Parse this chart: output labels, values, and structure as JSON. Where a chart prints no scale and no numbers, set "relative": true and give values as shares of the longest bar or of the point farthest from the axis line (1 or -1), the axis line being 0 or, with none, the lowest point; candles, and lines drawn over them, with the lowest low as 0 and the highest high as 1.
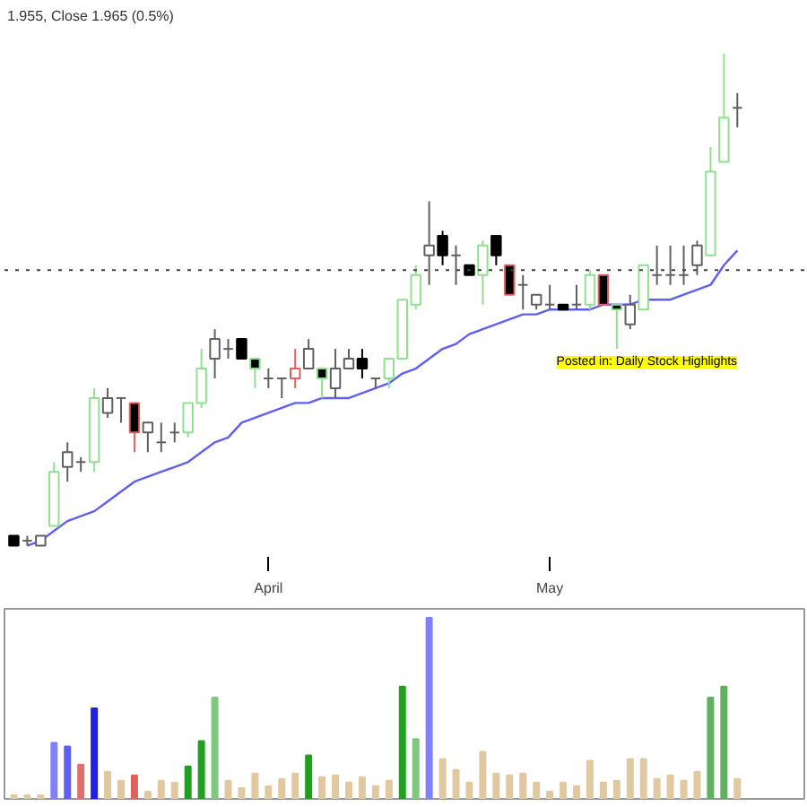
{
  "chart_data": [
    {
      "type": "candlestick",
      "relative": true,
      "annotations": [
        "1.955, Close 1.965 (0.5%)",
        "Posted in: Daily Stock Highlights"
      ],
      "categories": [
        null,
        null,
        null,
        null,
        null,
        null,
        null,
        null,
        null,
        null,
        null,
        null,
        null,
        null,
        null,
        null,
        null,
        null,
        null,
        "April",
        null,
        null,
        null,
        null,
        null,
        null,
        null,
        null,
        null,
        null,
        null,
        null,
        null,
        null,
        null,
        null,
        null,
        null,
        null,
        null,
        "May",
        null,
        null,
        null,
        null,
        null,
        null,
        null,
        null,
        null,
        null,
        null,
        null,
        null,
        null
      ],
      "ohlc": [
        [
          0.02,
          0.02,
          0,
          0
        ],
        [
          0.01,
          0.02,
          0,
          0.01
        ],
        [
          0,
          0.02,
          0,
          0.02
        ],
        [
          0.04,
          0.17,
          0.04,
          0.15
        ],
        [
          0.16,
          0.21,
          0.13,
          0.19
        ],
        [
          0.17,
          0.18,
          0.15,
          0.17
        ],
        [
          0.17,
          0.32,
          0.15,
          0.3
        ],
        [
          0.27,
          0.32,
          0.26,
          0.3
        ],
        [
          0.3,
          0.3,
          0.25,
          0.3
        ],
        [
          0.29,
          0.29,
          0.19,
          0.23
        ],
        [
          0.23,
          0.25,
          0.19,
          0.25
        ],
        [
          0.21,
          0.25,
          0.19,
          0.21
        ],
        [
          0.23,
          0.25,
          0.21,
          0.23
        ],
        [
          0.23,
          0.29,
          0.22,
          0.29
        ],
        [
          0.29,
          0.4,
          0.28,
          0.36
        ],
        [
          0.38,
          0.44,
          0.34,
          0.42
        ],
        [
          0.4,
          0.42,
          0.38,
          0.4
        ],
        [
          0.42,
          0.42,
          0.38,
          0.38
        ],
        [
          0.38,
          0.38,
          0.32,
          0.36
        ],
        [
          0.34,
          0.36,
          0.32,
          0.34
        ],
        [
          0.34,
          0.34,
          0.3,
          0.34
        ],
        [
          0.34,
          0.4,
          0.32,
          0.36
        ],
        [
          0.36,
          0.42,
          0.36,
          0.4
        ],
        [
          0.36,
          0.36,
          0.3,
          0.34
        ],
        [
          0.32,
          0.4,
          0.3,
          0.36
        ],
        [
          0.36,
          0.4,
          0.36,
          0.38
        ],
        [
          0.38,
          0.4,
          0.34,
          0.36
        ],
        [
          0.34,
          0.34,
          0.32,
          0.34
        ],
        [
          0.34,
          0.38,
          0.32,
          0.38
        ],
        [
          0.38,
          0.5,
          0.38,
          0.5
        ],
        [
          0.49,
          0.57,
          0.48,
          0.55
        ],
        [
          0.59,
          0.7,
          0.53,
          0.61
        ],
        [
          0.63,
          0.64,
          0.57,
          0.59
        ],
        [
          0.59,
          0.61,
          0.53,
          0.59
        ],
        [
          0.57,
          0.57,
          0.55,
          0.55
        ],
        [
          0.55,
          0.62,
          0.49,
          0.61
        ],
        [
          0.63,
          0.63,
          0.57,
          0.59
        ],
        [
          0.57,
          0.57,
          0.51,
          0.51
        ],
        [
          0.53,
          0.55,
          0.48,
          0.53
        ],
        [
          0.49,
          0.51,
          0.48,
          0.51
        ],
        [
          0.49,
          0.53,
          0.48,
          0.49
        ],
        [
          0.49,
          0.49,
          0.48,
          0.48
        ],
        [
          0.49,
          0.53,
          0.48,
          0.49
        ],
        [
          0.49,
          0.56,
          0.48,
          0.55
        ],
        [
          0.55,
          0.55,
          0.49,
          0.49
        ],
        [
          0.49,
          0.49,
          0.4,
          0.48
        ],
        [
          0.45,
          0.51,
          0.44,
          0.49
        ],
        [
          0.48,
          0.57,
          0.48,
          0.57
        ],
        [
          0.55,
          0.61,
          0.53,
          0.55
        ],
        [
          0.55,
          0.61,
          0.53,
          0.55
        ],
        [
          0.55,
          0.61,
          0.53,
          0.55
        ],
        [
          0.57,
          0.62,
          0.55,
          0.61
        ],
        [
          0.59,
          0.81,
          0.59,
          0.76
        ],
        [
          0.78,
          1,
          0.78,
          0.87
        ],
        [
          0.89,
          0.92,
          0.85,
          0.89
        ]
      ],
      "colors": [
        "#000000",
        "#606060",
        "#606060",
        "#90e090",
        "#606060",
        "#606060",
        "#90e090",
        "#606060",
        "#606060",
        "#e06060",
        "#606060",
        "#606060",
        "#606060",
        "#90e090",
        "#90e090",
        "#606060",
        "#606060",
        "#000000",
        "#90e090",
        "#606060",
        "#606060",
        "#e06060",
        "#606060",
        "#90e090",
        "#606060",
        "#606060",
        "#000000",
        "#606060",
        "#90e090",
        "#90e090",
        "#90e090",
        "#606060",
        "#000000",
        "#606060",
        "#000000",
        "#90e090",
        "#000000",
        "#e06060",
        "#606060",
        "#606060",
        "#606060",
        "#000000",
        "#606060",
        "#90e090",
        "#e06060",
        "#90e090",
        "#606060",
        "#90e090",
        "#606060",
        "#606060",
        "#606060",
        "#606060",
        "#90e090",
        "#90e090",
        "#606060"
      ],
      "series": [
        {
          "type": "line",
          "color": "#6060f0",
          "values": [
            null,
            0,
            0.01,
            0.03,
            0.05,
            0.06,
            0.07,
            0.09,
            0.11,
            0.13,
            0.14,
            0.15,
            0.16,
            0.17,
            0.19,
            0.21,
            0.22,
            0.25,
            0.26,
            0.27,
            0.28,
            0.29,
            0.29,
            0.3,
            0.3,
            0.3,
            0.31,
            0.32,
            0.33,
            0.35,
            0.36,
            0.38,
            0.4,
            0.41,
            0.43,
            0.44,
            0.45,
            0.46,
            0.47,
            0.47,
            0.48,
            0.48,
            0.48,
            0.48,
            0.49,
            0.49,
            0.49,
            0.5,
            0.5,
            0.5,
            0.51,
            0.52,
            0.53,
            0.57,
            0.6
          ]
        }
      ],
      "ref_lines": [
        {
          "axis": "y",
          "value": 0.56,
          "color": "#404040",
          "line_style": "dotted"
        }
      ]
    },
    {
      "type": "bar",
      "relative": true,
      "tick_labels": false,
      "categories": [
        null,
        null,
        null,
        null,
        null,
        null,
        null,
        null,
        null,
        null,
        null,
        null,
        null,
        null,
        null,
        null,
        null,
        null,
        null,
        null,
        null,
        null,
        null,
        null,
        null,
        null,
        null,
        null,
        null,
        null,
        null,
        null,
        null,
        null,
        null,
        null,
        null,
        null,
        null,
        null,
        null,
        null,
        null,
        null,
        null,
        null,
        null,
        null,
        null,
        null,
        null,
        null,
        null,
        null,
        null
      ],
      "values": [
        0.02,
        0.02,
        0.02,
        0.31,
        0.29,
        0.19,
        0.5,
        0.15,
        0.1,
        0.13,
        0.04,
        0.1,
        0.09,
        0.18,
        0.32,
        0.56,
        0.1,
        0.06,
        0.14,
        0.07,
        0.11,
        0.14,
        0.24,
        0.12,
        0.13,
        0.09,
        0.12,
        0.07,
        0.1,
        0.62,
        0.33,
        1,
        0.22,
        0.16,
        0.09,
        0.26,
        0.14,
        0.13,
        0.14,
        0.09,
        0.04,
        0.09,
        0.07,
        0.21,
        0.09,
        0.1,
        0.22,
        0.22,
        0.11,
        0.13,
        0.1,
        0.15,
        0.56,
        0.62,
        0.11
      ],
      "colors": [
        "#e0c8a0",
        "#e0c8a0",
        "#e0c8a0",
        "#8080ff",
        "#6060f0",
        "#e07070",
        "#2020e0",
        "#e0c8a0",
        "#e0c8a0",
        "#e06060",
        "#e0c8a0",
        "#e0c8a0",
        "#e0c8a0",
        "#20a020",
        "#20a020",
        "#80c880",
        "#e0c8a0",
        "#e0c8a0",
        "#e0c8a0",
        "#e0c8a0",
        "#e0c8a0",
        "#e0c8a0",
        "#20a020",
        "#e0c8a0",
        "#e0c8a0",
        "#e0c8a0",
        "#e0c8a0",
        "#e0c8a0",
        "#e0c8a0",
        "#20a020",
        "#80c880",
        "#8080ff",
        "#e0c8a0",
        "#e0c8a0",
        "#e0c8a0",
        "#e0c8a0",
        "#e0c8a0",
        "#e0c8a0",
        "#e0c8a0",
        "#e0c8a0",
        "#e0c8a0",
        "#e0c8a0",
        "#e0c8a0",
        "#e0c8a0",
        "#e0c8a0",
        "#e0c8a0",
        "#e0c8a0",
        "#e0c8a0",
        "#e0c8a0",
        "#e0c8a0",
        "#e0c8a0",
        "#e0c8a0",
        "#60b060",
        "#60b060",
        "#e0c8a0"
      ]
    }
  ]
}
